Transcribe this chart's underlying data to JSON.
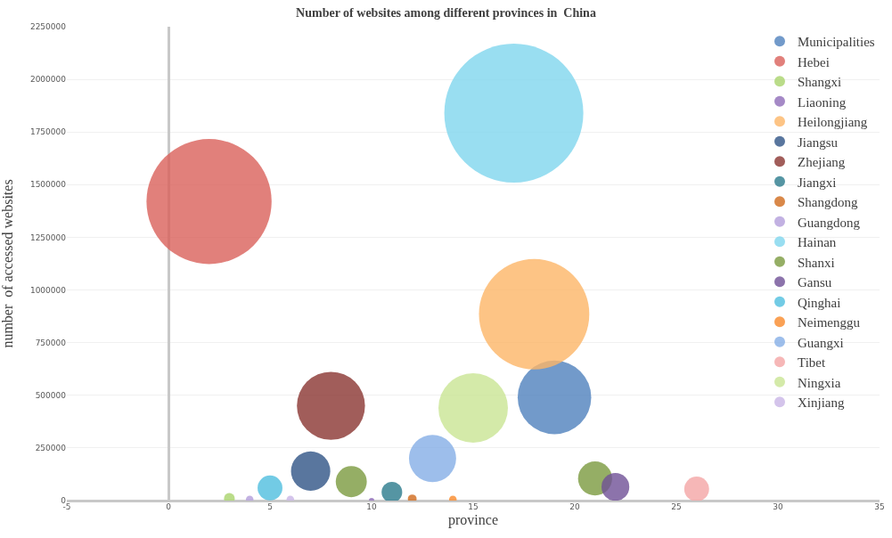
{
  "chart_data": {
    "type": "bubble",
    "title": "Number of websites among different provinces in  China",
    "xlabel": "province",
    "ylabel": "number  of accessed websites",
    "relative": false,
    "xlim": [
      -5,
      35
    ],
    "xticks": [
      -5,
      0,
      5,
      10,
      15,
      20,
      25,
      30,
      35
    ],
    "ylim": [
      0,
      2250000
    ],
    "yticks": [
      0,
      250000,
      500000,
      750000,
      1000000,
      1250000,
      1500000,
      1750000,
      2000000,
      2250000
    ],
    "grid": "y",
    "legend": "top right",
    "series": [
      {
        "name": "Municipalities",
        "color": "#4f81bd",
        "x": [
          19
        ],
        "values": [
          490000
        ],
        "sizes": [
          0.28
        ]
      },
      {
        "name": "Hebei",
        "color": "#d9605a",
        "x": [
          2
        ],
        "values": [
          1420000
        ],
        "sizes": [
          0.81
        ]
      },
      {
        "name": "Shangxi",
        "color": "#a9d36b",
        "x": [
          3
        ],
        "values": [
          10000
        ],
        "sizes": [
          0.006
        ]
      },
      {
        "name": "Liaoning",
        "color": "#8e6bb8",
        "x": [
          10
        ],
        "values": [
          0
        ],
        "sizes": [
          0.0015
        ]
      },
      {
        "name": "Heilongjiang",
        "color": "#fcb567",
        "x": [
          18
        ],
        "values": [
          885000
        ],
        "sizes": [
          0.63
        ]
      },
      {
        "name": "Jiangsu",
        "color": "#2f5486",
        "x": [
          7
        ],
        "values": [
          140000
        ],
        "sizes": [
          0.08
        ]
      },
      {
        "name": "Zhejiang",
        "color": "#8a3431",
        "x": [
          8
        ],
        "values": [
          450000
        ],
        "sizes": [
          0.24
        ]
      },
      {
        "name": "Jiangxi",
        "color": "#2b7a8c",
        "x": [
          11
        ],
        "values": [
          40000
        ],
        "sizes": [
          0.022
        ]
      },
      {
        "name": "Shangdong",
        "color": "#d06a1c",
        "x": [
          12
        ],
        "values": [
          8000
        ],
        "sizes": [
          0.004
        ]
      },
      {
        "name": "Guangdong",
        "color": "#b39ddb",
        "x": [
          4
        ],
        "values": [
          5000
        ],
        "sizes": [
          0.003
        ]
      },
      {
        "name": "Hainan",
        "color": "#7fd6ee",
        "x": [
          17
        ],
        "values": [
          1840000
        ],
        "sizes": [
          1
        ]
      },
      {
        "name": "Shanxi",
        "color": "#7a9a3e",
        "x": [
          9,
          21
        ],
        "values": [
          90000,
          105000
        ],
        "sizes": [
          0.05,
          0.06
        ]
      },
      {
        "name": "Gansu",
        "color": "#6f5096",
        "x": [
          22
        ],
        "values": [
          65000
        ],
        "sizes": [
          0.04
        ]
      },
      {
        "name": "Qinghai",
        "color": "#4fbede",
        "x": [
          5
        ],
        "values": [
          60000
        ],
        "sizes": [
          0.032
        ]
      },
      {
        "name": "Neimenggu",
        "color": "#f98a2a",
        "x": [
          14
        ],
        "values": [
          5000
        ],
        "sizes": [
          0.003
        ]
      },
      {
        "name": "Guangxi",
        "color": "#85aee6",
        "x": [
          13
        ],
        "values": [
          200000
        ],
        "sizes": [
          0.115
        ]
      },
      {
        "name": "Tibet",
        "color": "#f4a5a5",
        "x": [
          26
        ],
        "values": [
          55000
        ],
        "sizes": [
          0.032
        ]
      },
      {
        "name": "Ningxia",
        "color": "#c9e594",
        "x": [
          15
        ],
        "values": [
          440000
        ],
        "sizes": [
          0.25
        ]
      },
      {
        "name": "Xinjiang",
        "color": "#c9b5e6",
        "x": [
          6
        ],
        "values": [
          5000
        ],
        "sizes": [
          0.003
        ]
      }
    ]
  }
}
